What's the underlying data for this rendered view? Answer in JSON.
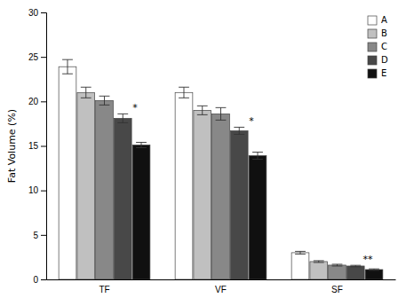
{
  "chart_data": {
    "type": "bar",
    "categories": [
      "TF",
      "VF",
      "SF"
    ],
    "series": [
      {
        "name": "A",
        "color": "#ffffff",
        "values": [
          23.9,
          21.0,
          3.0
        ],
        "errors": [
          0.8,
          0.6,
          0.15
        ]
      },
      {
        "name": "B",
        "color": "#c0c0c0",
        "values": [
          21.0,
          19.0,
          2.0
        ],
        "errors": [
          0.6,
          0.5,
          0.1
        ]
      },
      {
        "name": "C",
        "color": "#888888",
        "values": [
          20.1,
          18.6,
          1.6
        ],
        "errors": [
          0.5,
          0.7,
          0.1
        ]
      },
      {
        "name": "D",
        "color": "#484848",
        "values": [
          18.1,
          16.7,
          1.5
        ],
        "errors": [
          0.5,
          0.4,
          0.08
        ]
      },
      {
        "name": "E",
        "color": "#101010",
        "values": [
          15.1,
          13.9,
          1.1
        ],
        "errors": [
          0.3,
          0.4,
          0.08
        ]
      }
    ],
    "y_label": "Fat Volume (%)",
    "ylim": [
      0,
      30
    ],
    "yticks": [
      0,
      5,
      10,
      15,
      20,
      25,
      30
    ],
    "legend": "upper right",
    "grid": false,
    "annotations": [
      {
        "text": "*",
        "category": "TF",
        "series": "D"
      },
      {
        "text": "*",
        "category": "VF",
        "series": "D"
      },
      {
        "text": "**",
        "category": "SF",
        "series": "D"
      }
    ]
  }
}
